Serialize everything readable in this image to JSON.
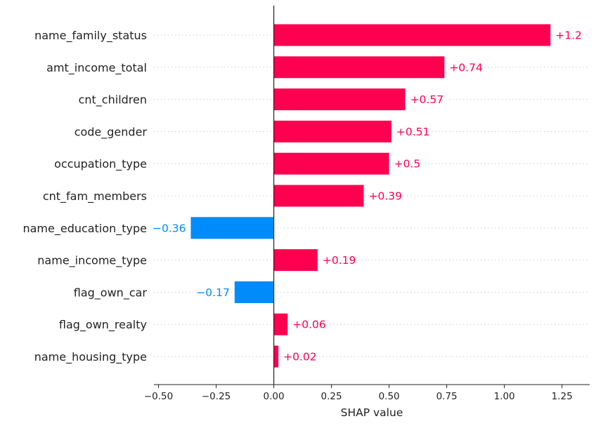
{
  "chart_data": {
    "type": "bar",
    "orientation": "horizontal",
    "categories": [
      "name_family_status",
      "amt_income_total",
      "cnt_children",
      "code_gender",
      "occupation_type",
      "cnt_fam_members",
      "name_education_type",
      "name_income_type",
      "flag_own_car",
      "flag_own_realty",
      "name_housing_type"
    ],
    "values": [
      1.2,
      0.74,
      0.57,
      0.51,
      0.5,
      0.39,
      -0.36,
      0.19,
      -0.17,
      0.06,
      0.02
    ],
    "value_labels": [
      "+1.2",
      "+0.74",
      "+0.57",
      "+0.51",
      "+0.5",
      "+0.39",
      "−0.36",
      "+0.19",
      "−0.17",
      "+0.06",
      "+0.02"
    ],
    "xlabel": "SHAP value",
    "xlim": [
      -0.52,
      1.37
    ],
    "xticks": [
      -0.5,
      -0.25,
      0.0,
      0.25,
      0.5,
      0.75,
      1.0,
      1.25
    ],
    "xtick_labels": [
      "−0.50",
      "−0.25",
      "0.00",
      "0.25",
      "0.50",
      "0.75",
      "1.00",
      "1.25"
    ],
    "colors": {
      "positive": "#ff0051",
      "negative": "#008bfb",
      "text": "#222222",
      "grid": "#cccccc"
    },
    "grid": "horizontal dotted"
  }
}
